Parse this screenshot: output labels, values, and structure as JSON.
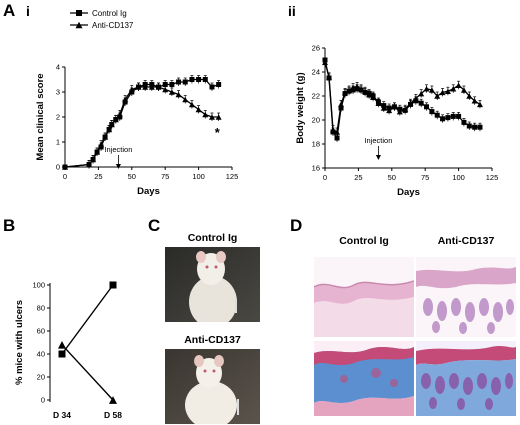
{
  "panels": {
    "A": "A",
    "A_i": "i",
    "A_ii": "ii",
    "B": "B",
    "C": "C",
    "D": "D"
  },
  "chart_data": [
    {
      "type": "line",
      "panel": "A i",
      "xlabel": "Days",
      "ylabel": "Mean clinical score",
      "xlim": [
        0,
        125
      ],
      "ylim": [
        0,
        4
      ],
      "xticks": [
        "0",
        "25",
        "50",
        "75",
        "100",
        "125"
      ],
      "yticks": [
        "0",
        "1",
        "2",
        "3",
        "4"
      ],
      "legend": [
        "Control Ig",
        "Anti-CD137"
      ],
      "legend_position": "top-left",
      "annotation": {
        "text": "Injection",
        "x": 40
      },
      "significance": {
        "text": "*",
        "x": 114
      },
      "series": [
        {
          "name": "Control Ig",
          "marker": "square",
          "x": [
            0,
            18,
            21,
            24,
            27,
            30,
            33,
            35,
            38,
            41,
            45,
            50,
            55,
            60,
            65,
            70,
            75,
            80,
            85,
            90,
            95,
            100,
            105,
            110,
            115
          ],
          "y": [
            0,
            0.1,
            0.3,
            0.6,
            0.8,
            1.2,
            1.5,
            1.7,
            1.9,
            2.0,
            2.6,
            3.0,
            3.2,
            3.3,
            3.3,
            3.2,
            3.3,
            3.3,
            3.4,
            3.4,
            3.5,
            3.5,
            3.5,
            3.2,
            3.3
          ]
        },
        {
          "name": "Anti-CD137",
          "marker": "triangle",
          "x": [
            0,
            18,
            21,
            24,
            27,
            30,
            33,
            35,
            38,
            41,
            45,
            50,
            55,
            60,
            65,
            70,
            75,
            80,
            85,
            90,
            95,
            100,
            105,
            110,
            115
          ],
          "y": [
            0,
            0.1,
            0.3,
            0.6,
            0.9,
            1.2,
            1.5,
            1.7,
            1.9,
            2.1,
            2.7,
            3.1,
            3.2,
            3.2,
            3.2,
            3.2,
            3.1,
            3.0,
            2.9,
            2.7,
            2.5,
            2.3,
            2.1,
            2.0,
            2.0
          ]
        }
      ]
    },
    {
      "type": "line",
      "panel": "A ii",
      "xlabel": "Days",
      "ylabel": "Body weight (g)",
      "xlim": [
        0,
        125
      ],
      "ylim": [
        16,
        26
      ],
      "xticks": [
        "0",
        "25",
        "50",
        "75",
        "100",
        "125"
      ],
      "yticks": [
        "16",
        "18",
        "20",
        "22",
        "24",
        "26"
      ],
      "annotation": {
        "text": "Injection",
        "x": 40
      },
      "series": [
        {
          "name": "Control Ig",
          "marker": "square",
          "x": [
            0,
            3,
            6,
            9,
            12,
            15,
            18,
            21,
            24,
            27,
            30,
            33,
            36,
            40,
            44,
            48,
            52,
            56,
            60,
            64,
            68,
            72,
            76,
            80,
            84,
            88,
            92,
            96,
            100,
            104,
            108,
            112,
            116
          ],
          "y": [
            25.0,
            23.5,
            19.0,
            18.5,
            21.0,
            22.2,
            22.4,
            22.5,
            22.6,
            22.5,
            22.3,
            22.2,
            22.0,
            21.5,
            21.2,
            21.0,
            21.1,
            20.9,
            20.8,
            21.3,
            21.6,
            21.4,
            21.1,
            20.7,
            20.4,
            20.1,
            20.2,
            20.3,
            20.3,
            19.8,
            19.5,
            19.4,
            19.4
          ]
        },
        {
          "name": "Anti-CD137",
          "marker": "triangle",
          "x": [
            0,
            3,
            6,
            9,
            12,
            15,
            18,
            21,
            24,
            27,
            30,
            33,
            36,
            40,
            44,
            48,
            52,
            56,
            60,
            64,
            68,
            72,
            76,
            80,
            84,
            88,
            92,
            96,
            100,
            104,
            108,
            112,
            116
          ],
          "y": [
            24.8,
            23.6,
            19.2,
            19.0,
            21.3,
            22.3,
            22.5,
            22.7,
            22.8,
            22.6,
            22.4,
            22.1,
            21.9,
            21.4,
            21.0,
            20.8,
            21.1,
            20.7,
            20.9,
            21.4,
            21.8,
            22.2,
            22.6,
            22.5,
            22.0,
            22.3,
            22.4,
            22.6,
            22.9,
            22.5,
            22.0,
            21.6,
            21.3
          ]
        }
      ]
    },
    {
      "type": "line",
      "panel": "B",
      "ylabel": "% mice with ulcers",
      "categories": [
        "D 34",
        "D 58"
      ],
      "ylim": [
        0,
        100
      ],
      "yticks": [
        "0",
        "20",
        "40",
        "60",
        "80",
        "100"
      ],
      "series": [
        {
          "name": "Control Ig",
          "marker": "square",
          "values": [
            40,
            100
          ]
        },
        {
          "name": "Anti-CD137",
          "marker": "triangle",
          "values": [
            48,
            0
          ]
        }
      ]
    }
  ],
  "panel_c": {
    "control_label": "Control Ig",
    "anti_label": "Anti-CD137"
  },
  "panel_d": {
    "control_label": "Control Ig",
    "anti_label": "Anti-CD137"
  },
  "colors": {
    "ink": "#000000",
    "he_stain": "#e9b9d6",
    "trichrome_blue": "#5b8fd0",
    "trichrome_red": "#c44a78"
  }
}
